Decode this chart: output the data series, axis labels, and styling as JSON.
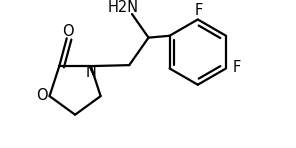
{
  "bg_color": "#ffffff",
  "line_color": "#000000",
  "line_width": 1.6,
  "font_size": 10.5,
  "figsize": [
    2.96,
    1.48
  ],
  "dpi": 100,
  "atoms": {
    "O_carbonyl_label": "O",
    "N_label": "N",
    "O_ring_label": "O",
    "NH2_label": "H2N",
    "F1_label": "F",
    "F2_label": "F"
  }
}
